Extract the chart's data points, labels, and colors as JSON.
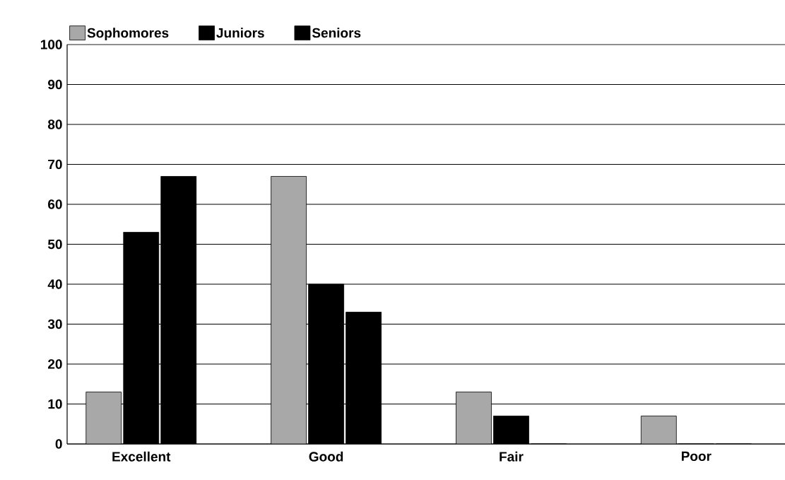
{
  "chart_data": {
    "type": "bar",
    "categories": [
      "Excellent",
      "Good",
      "Fair",
      "Poor"
    ],
    "series": [
      {
        "name": "Sophomores",
        "color": "#a8a8a8",
        "values": [
          13,
          67,
          13,
          7
        ]
      },
      {
        "name": "Juniors",
        "color": "#000000",
        "values": [
          53,
          40,
          7,
          0
        ]
      },
      {
        "name": "Seniors",
        "color": "#000000",
        "values": [
          67,
          33,
          0,
          0
        ]
      }
    ],
    "ylim": [
      0,
      100
    ],
    "yticks": [
      0,
      10,
      20,
      30,
      40,
      50,
      60,
      70,
      80,
      90,
      100
    ],
    "grid": "y",
    "legend": "top left"
  }
}
